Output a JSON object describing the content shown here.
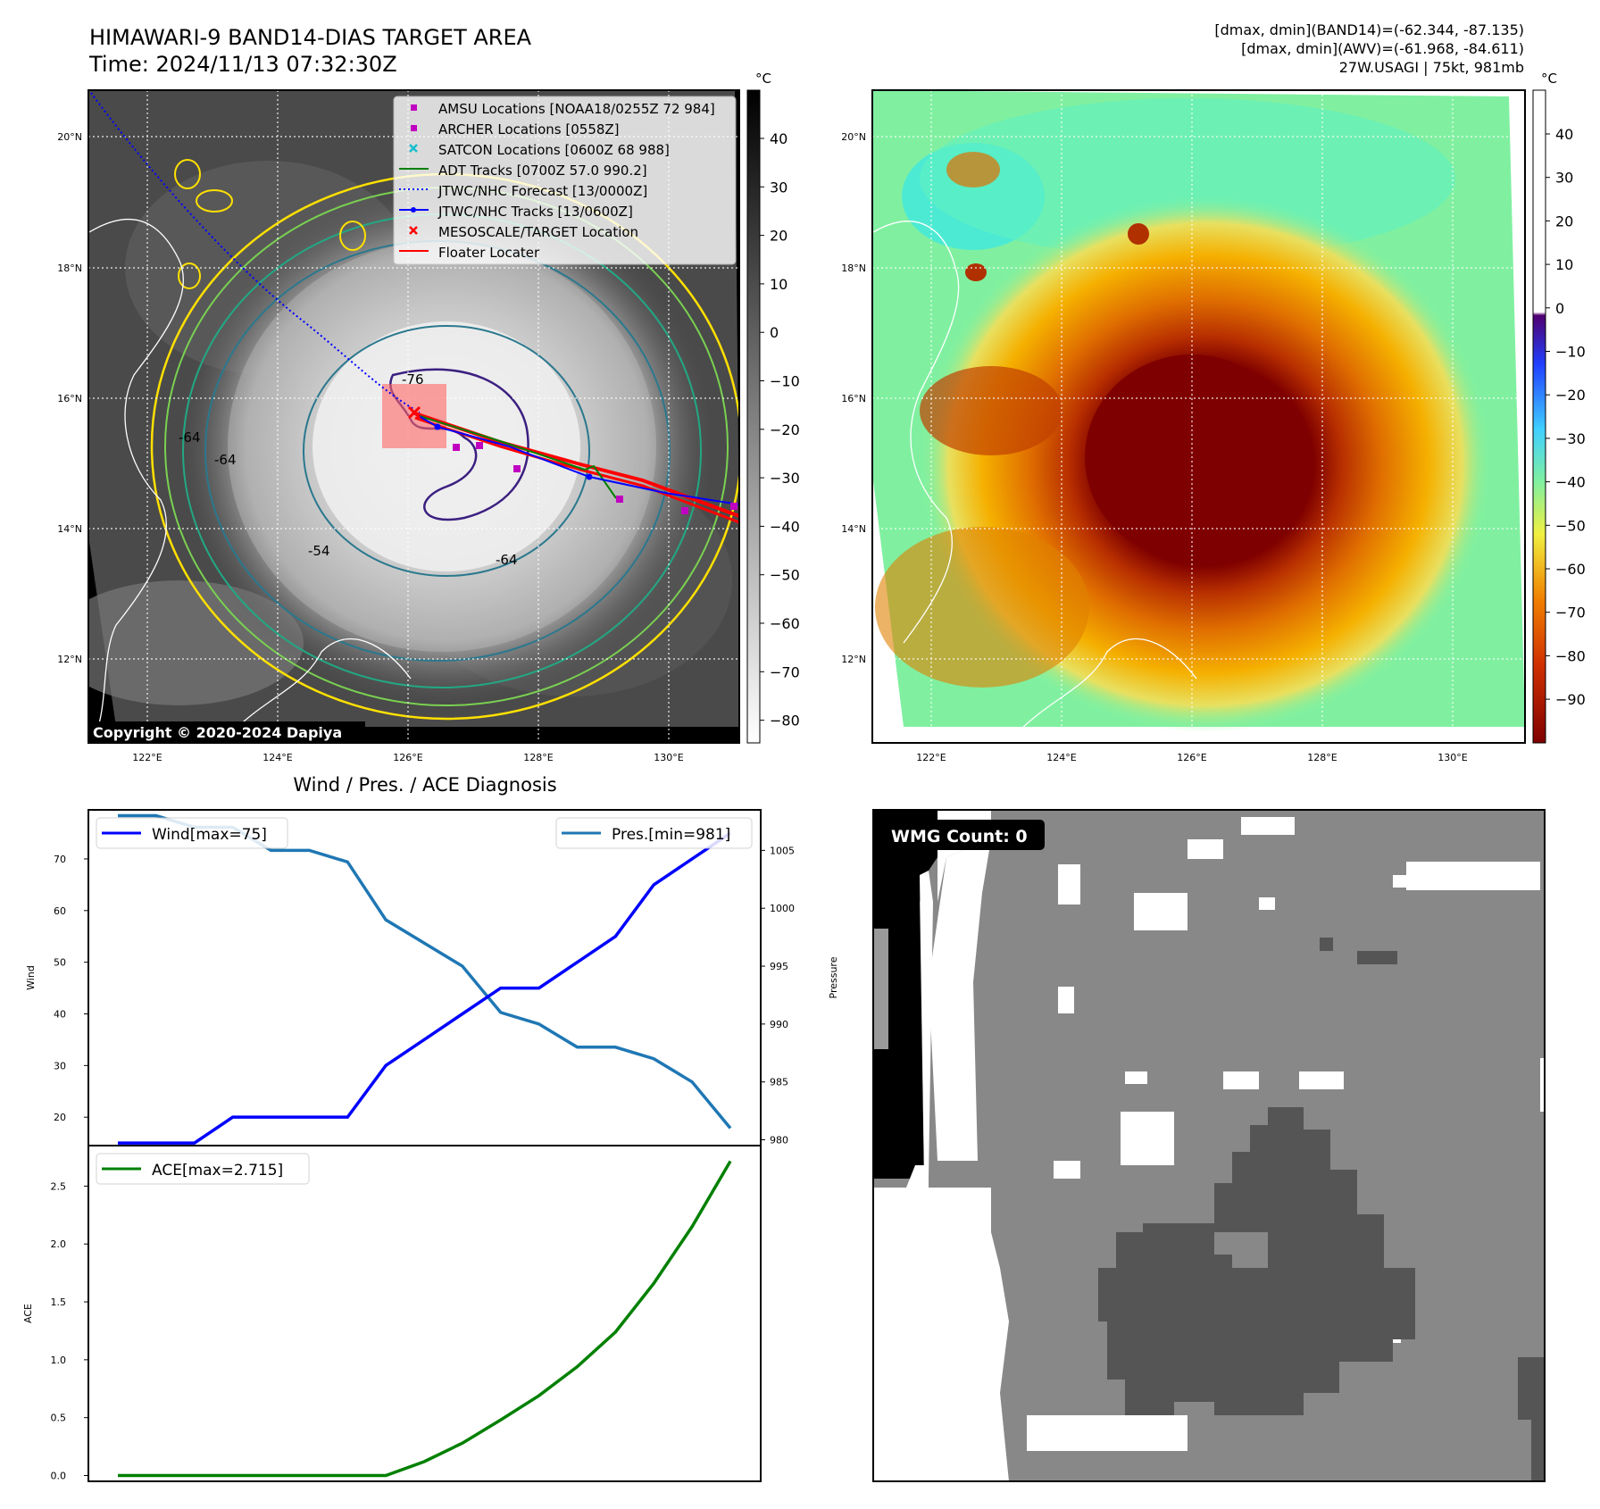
{
  "header": {
    "title_line1": "HIMAWARI-9 BAND14-DIAS TARGET AREA",
    "title_line2": "Time: 2024/11/13 07:32:30Z",
    "info_line1": "[dmax, dmin](BAND14)=(-62.344, -87.135)",
    "info_line2": "[dmax, dmin](AWV)=(-61.968, -84.611)",
    "info_line3": "27W.USAGI | 75kt, 981mb"
  },
  "ir_panel": {
    "copyright": "Copyright © 2020-2024 Dapiya",
    "colorbar_unit": "°C",
    "colorbar_ticks": [
      "40",
      "30",
      "20",
      "10",
      "0",
      "−10",
      "−20",
      "−30",
      "−40",
      "−50",
      "−60",
      "−70",
      "−80"
    ],
    "contour_labels": [
      "-76",
      "-64",
      "-64",
      "-54",
      "-64"
    ],
    "lat_labels": [
      "20°N",
      "18°N",
      "16°N",
      "14°N",
      "12°N"
    ],
    "lon_labels": [
      "122°E",
      "124°E",
      "126°E",
      "128°E",
      "130°E"
    ],
    "legend": [
      {
        "label": "AMSU Locations [NOAA18/0255Z 72 984]",
        "symbol": "square",
        "color": "#c000c0"
      },
      {
        "label": "ARCHER Locations [0558Z]",
        "symbol": "square",
        "color": "#c000c0"
      },
      {
        "label": "SATCON Locations [0600Z 68 988]",
        "symbol": "x",
        "color": "#17becf"
      },
      {
        "label": "ADT Tracks [0700Z 57.0 990.2]",
        "symbol": "line",
        "color": "#008000"
      },
      {
        "label": "JTWC/NHC Forecast [13/0000Z]",
        "symbol": "dotted",
        "color": "#0000ff"
      },
      {
        "label": "JTWC/NHC Tracks [13/0600Z]",
        "symbol": "line-dot",
        "color": "#0000ff"
      },
      {
        "label": "MESOSCALE/TARGET Location",
        "symbol": "x",
        "color": "#ff0000"
      },
      {
        "label": "Floater Locater",
        "symbol": "line",
        "color": "#ff0000"
      }
    ]
  },
  "awv_panel": {
    "colorbar_unit": "°C",
    "colorbar_ticks": [
      "40",
      "30",
      "20",
      "10",
      "0",
      "−10",
      "−20",
      "−30",
      "−40",
      "−50",
      "−60",
      "−70",
      "−80",
      "−90"
    ],
    "lat_labels": [
      "20°N",
      "18°N",
      "16°N",
      "14°N",
      "12°N"
    ],
    "lon_labels": [
      "122°E",
      "124°E",
      "126°E",
      "128°E",
      "130°E"
    ]
  },
  "wmg_panel": {
    "label": "WMG Count: 0",
    "colors": {
      "white": "#ffffff",
      "light": "#888888",
      "dark": "#555555",
      "black": "#000000",
      "mid": "#9a9a9a"
    }
  },
  "colors": {
    "wind": "#0000ff",
    "pressure": "#1f77b4",
    "ace": "#008000"
  },
  "chart_data": [
    {
      "type": "line",
      "title": "Wind / Pres. / ACE Diagnosis",
      "xlabel": "",
      "series": [
        {
          "name": "Wind[max=75]",
          "axis": "left",
          "ylabel": "Wind",
          "values": [
            15,
            15,
            15,
            20,
            20,
            20,
            20,
            30,
            35,
            40,
            45,
            45,
            50,
            55,
            65,
            70,
            75
          ]
        },
        {
          "name": "Pres.[min=981]",
          "axis": "right",
          "ylabel": "Pressure",
          "values": [
            1008,
            1008,
            1007,
            1007,
            1005,
            1005,
            1004,
            999,
            997,
            995,
            991,
            990,
            988,
            988,
            987,
            985,
            981
          ]
        }
      ],
      "ylim_left": [
        14.5,
        79.5
      ],
      "yticks_left": [
        20,
        30,
        40,
        50,
        60,
        70
      ],
      "ylim_right": [
        979.5,
        1008.5
      ],
      "yticks_right": [
        980,
        985,
        990,
        995,
        1000,
        1005
      ]
    },
    {
      "type": "line",
      "series": [
        {
          "name": "ACE[max=2.715]",
          "ylabel": "ACE",
          "values": [
            0,
            0,
            0,
            0,
            0,
            0,
            0,
            0,
            0.12,
            0.28,
            0.48,
            0.69,
            0.94,
            1.24,
            1.66,
            2.15,
            2.715
          ]
        }
      ],
      "ylim": [
        -0.05,
        2.85
      ],
      "yticks": [
        "0.0",
        "0.5",
        "1.0",
        "1.5",
        "2.0",
        "2.5"
      ]
    }
  ]
}
